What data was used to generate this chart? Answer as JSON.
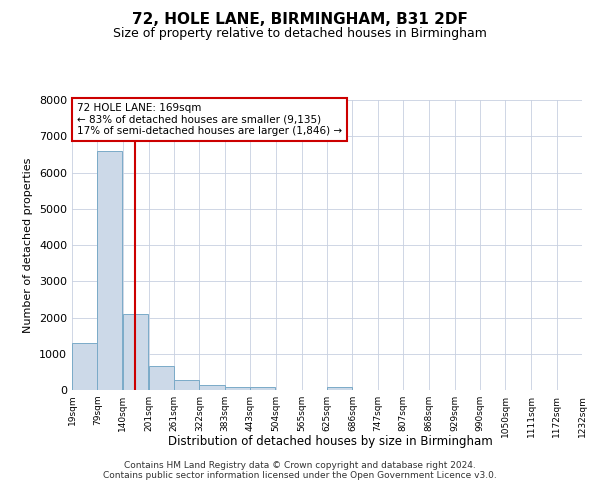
{
  "title": "72, HOLE LANE, BIRMINGHAM, B31 2DF",
  "subtitle": "Size of property relative to detached houses in Birmingham",
  "xlabel": "Distribution of detached houses by size in Birmingham",
  "ylabel": "Number of detached properties",
  "property_size": 169,
  "property_label": "72 HOLE LANE: 169sqm",
  "annotation_line1": "← 83% of detached houses are smaller (9,135)",
  "annotation_line2": "17% of semi-detached houses are larger (1,846) →",
  "footnote1": "Contains HM Land Registry data © Crown copyright and database right 2024.",
  "footnote2": "Contains public sector information licensed under the Open Government Licence v3.0.",
  "bar_color": "#ccd9e8",
  "bar_edge_color": "#7aaac8",
  "vline_color": "#cc0000",
  "annotation_box_color": "#cc0000",
  "grid_color": "#c8d0e0",
  "background_color": "#ffffff",
  "bin_edges": [
    19,
    79,
    140,
    201,
    261,
    322,
    383,
    443,
    504,
    565,
    625,
    686,
    747,
    807,
    868,
    929,
    990,
    1050,
    1111,
    1172,
    1232
  ],
  "bin_labels": [
    "19sqm",
    "79sqm",
    "140sqm",
    "201sqm",
    "261sqm",
    "322sqm",
    "383sqm",
    "443sqm",
    "504sqm",
    "565sqm",
    "625sqm",
    "686sqm",
    "747sqm",
    "807sqm",
    "868sqm",
    "929sqm",
    "990sqm",
    "1050sqm",
    "1111sqm",
    "1172sqm",
    "1232sqm"
  ],
  "counts": [
    1300,
    6600,
    2100,
    650,
    280,
    130,
    80,
    80,
    0,
    0,
    80,
    0,
    0,
    0,
    0,
    0,
    0,
    0,
    0,
    0
  ],
  "ylim": [
    0,
    8000
  ],
  "yticks": [
    0,
    1000,
    2000,
    3000,
    4000,
    5000,
    6000,
    7000,
    8000
  ]
}
